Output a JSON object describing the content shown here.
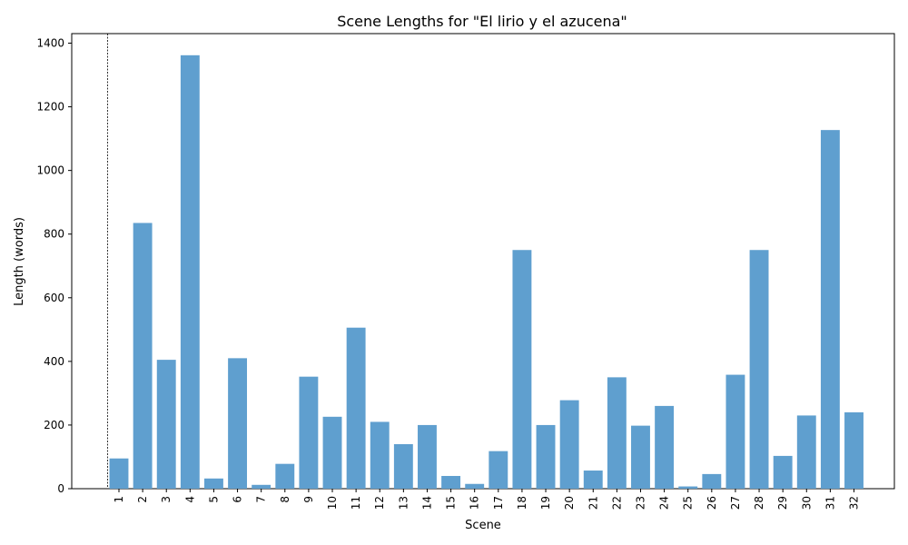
{
  "chart_data": {
    "type": "bar",
    "title": "Scene Lengths for \"El lirio y el azucena\"",
    "xlabel": "Scene",
    "ylabel": "Length (words)",
    "categories": [
      "1",
      "2",
      "3",
      "4",
      "5",
      "6",
      "7",
      "8",
      "9",
      "10",
      "11",
      "12",
      "13",
      "14",
      "15",
      "16",
      "17",
      "18",
      "19",
      "20",
      "21",
      "22",
      "23",
      "24",
      "25",
      "26",
      "27",
      "28",
      "29",
      "30",
      "31",
      "32"
    ],
    "values": [
      95,
      835,
      405,
      1362,
      32,
      410,
      12,
      78,
      352,
      226,
      506,
      210,
      140,
      200,
      40,
      15,
      118,
      750,
      200,
      278,
      57,
      350,
      198,
      260,
      7,
      46,
      358,
      750,
      103,
      230,
      1127,
      240
    ],
    "ylim": [
      0,
      1430
    ],
    "yticks": [
      0,
      200,
      400,
      600,
      800,
      1000,
      1200,
      1400
    ],
    "grid": false,
    "bar_color": "#5f9fcf",
    "reference_line": {
      "style": "dashed",
      "color": "#000000"
    }
  }
}
